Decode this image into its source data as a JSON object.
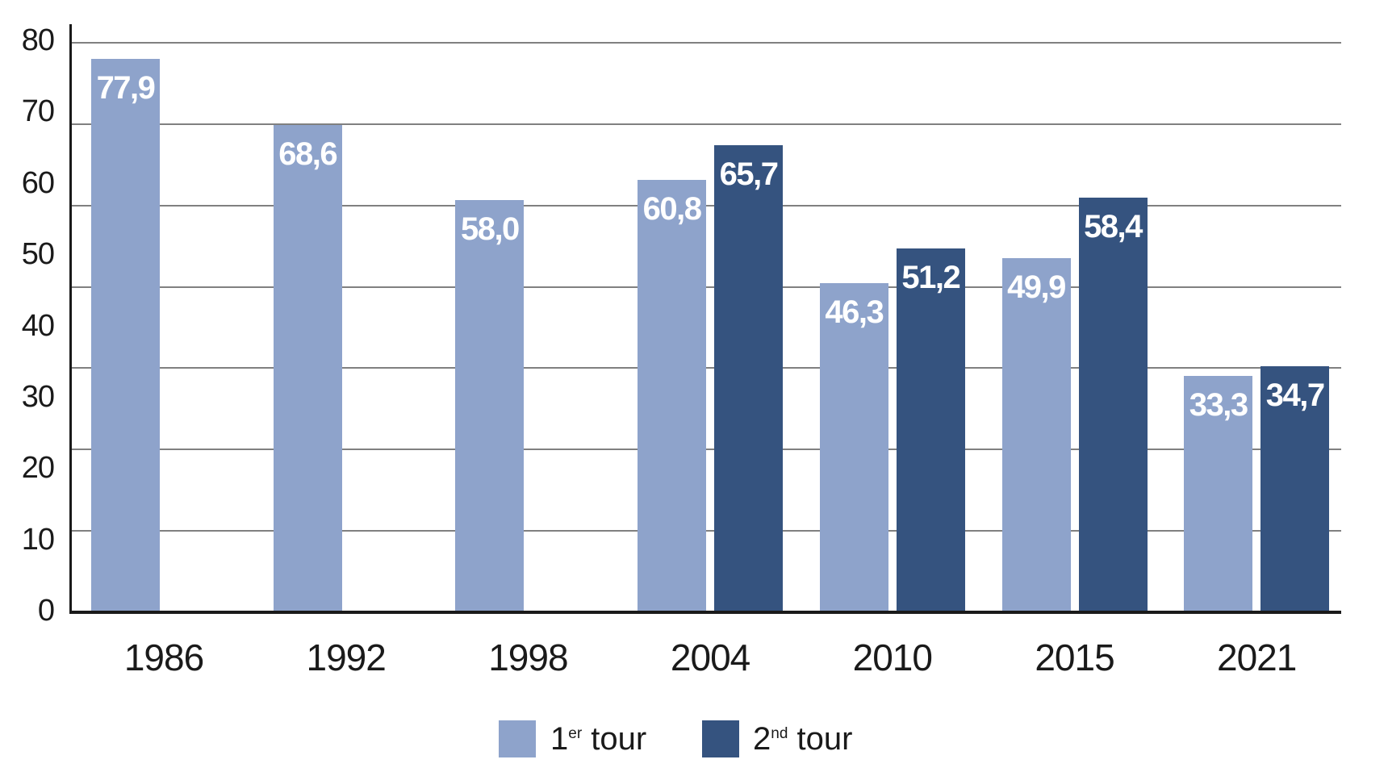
{
  "figure": {
    "background": "#FFFFFF"
  },
  "chart_data": {
    "type": "bar",
    "title": "",
    "categories": [
      "1986",
      "1992",
      "1998",
      "2004",
      "2010",
      "2015",
      "2021"
    ],
    "series": [
      {
        "name": "1er tour",
        "name_parts": {
          "base": "1",
          "sup": "er",
          "rest": " tour"
        },
        "color": "#8EA3CB",
        "values": [
          77.9,
          68.6,
          58.0,
          60.8,
          46.3,
          49.9,
          33.3
        ],
        "value_labels": [
          "77,9",
          "68,6",
          "58,0",
          "60,8",
          "46,3",
          "49,9",
          "33,3"
        ]
      },
      {
        "name": "2nd tour",
        "name_parts": {
          "base": "2",
          "sup": "nd",
          "rest": " tour"
        },
        "color": "#35537F",
        "values": [
          null,
          null,
          null,
          65.7,
          51.2,
          58.4,
          34.7
        ],
        "value_labels": [
          null,
          null,
          null,
          "65,7",
          "51,2",
          "58,4",
          "34,7"
        ]
      }
    ],
    "ylim": [
      0,
      80
    ],
    "y_tick_labels": [
      "80",
      "70",
      "60",
      "50",
      "40",
      "30",
      "20",
      "10",
      "0"
    ],
    "x_tick_labels": [
      "1986",
      "1992",
      "1998",
      "2004",
      "2010",
      "2015",
      "2021"
    ],
    "grid": true,
    "legend_position": "bottom",
    "colors": {
      "value_label": "#FFFFFF",
      "axis": "#1A1A1A",
      "gridline": "#808080",
      "tick_text": "#1A1A1A"
    }
  }
}
